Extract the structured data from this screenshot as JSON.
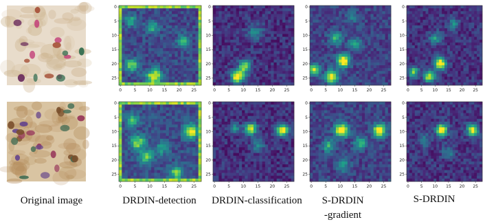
{
  "captions": {
    "original": "Original image",
    "detection": "DRDIN-detection",
    "classification": "DRDIN-classification",
    "sgradient_line1": "S-DRDIN",
    "sgradient_line2": "-gradient",
    "sdrdin": "S-DRDIN"
  },
  "heatmap_axes": {
    "y_ticks": [
      "0",
      "5",
      "10",
      "15",
      "20",
      "25"
    ],
    "x_ticks": [
      "0",
      "5",
      "10",
      "15",
      "20",
      "25"
    ],
    "grid_size": 28
  },
  "colors": {
    "colormap": "viridis",
    "background": "#ffffff"
  },
  "rows": [
    {
      "row": 1,
      "panels": [
        {
          "name": "original",
          "type": "photo",
          "palette": [
            "#e8dccb",
            "#cdb48f",
            "#a9573f",
            "#c23e78",
            "#6b2c5c",
            "#2f6b4e"
          ]
        },
        {
          "name": "detection",
          "type": "heatmap",
          "base": 0.22,
          "border": true,
          "hotspots": [
            [
              24.5,
              11.5,
              1.8,
              0.8
            ],
            [
              20.5,
              4,
              1.6,
              0.55
            ],
            [
              12,
              21.5,
              1.4,
              0.5
            ],
            [
              7,
              11,
              1.5,
              0.45
            ],
            [
              5,
              3.5,
              1.3,
              0.45
            ]
          ]
        },
        {
          "name": "classification",
          "type": "heatmap",
          "base": 0.14,
          "border": false,
          "hotspots": [
            [
              24.5,
              8,
              1.5,
              1.0
            ],
            [
              21,
              10.5,
              1.5,
              0.7
            ],
            [
              9,
              14,
              2.0,
              0.3
            ]
          ]
        },
        {
          "name": "s-drdin-gradient",
          "type": "heatmap",
          "base": 0.2,
          "border": false,
          "hotspots": [
            [
              19,
              11,
              1.5,
              1.0
            ],
            [
              24.5,
              7,
              1.5,
              0.85
            ],
            [
              22,
              1,
              1.3,
              0.7
            ],
            [
              11,
              8.5,
              1.5,
              0.45
            ],
            [
              13,
              15,
              1.5,
              0.4
            ],
            [
              3.5,
              14,
              1.2,
              0.35
            ]
          ]
        },
        {
          "name": "s-drdin",
          "type": "heatmap",
          "base": 0.15,
          "border": false,
          "hotspots": [
            [
              20,
              12,
              1.4,
              1.0
            ],
            [
              24.5,
              8,
              1.4,
              0.8
            ],
            [
              23,
              2,
              1.3,
              0.65
            ],
            [
              11,
              10,
              1.5,
              0.4
            ],
            [
              6,
              17,
              1.3,
              0.35
            ]
          ]
        }
      ]
    },
    {
      "row": 2,
      "panels": [
        {
          "name": "original",
          "type": "photo",
          "palette": [
            "#d9c4a2",
            "#b38b5a",
            "#7a4f2c",
            "#6a4a8c",
            "#9a3e5e",
            "#3d6a52"
          ]
        },
        {
          "name": "detection",
          "type": "heatmap",
          "base": 0.24,
          "border": true,
          "hotspots": [
            [
              10,
              24,
              1.6,
              0.85
            ],
            [
              14,
              6,
              1.8,
              0.6
            ],
            [
              19,
              9,
              1.6,
              0.5
            ],
            [
              24.5,
              19,
              1.6,
              0.55
            ],
            [
              6,
              4,
              1.5,
              0.45
            ],
            [
              16,
              14,
              1.5,
              0.35
            ]
          ]
        },
        {
          "name": "classification",
          "type": "heatmap",
          "base": 0.14,
          "border": false,
          "hotspots": [
            [
              9.5,
              23.5,
              1.4,
              1.0
            ],
            [
              9,
              12.5,
              1.4,
              0.8
            ],
            [
              9,
              7,
              1.3,
              0.4
            ],
            [
              15,
              15,
              1.6,
              0.3
            ]
          ]
        },
        {
          "name": "s-drdin-gradient",
          "type": "heatmap",
          "base": 0.2,
          "border": false,
          "hotspots": [
            [
              9.5,
              10.5,
              1.6,
              1.0
            ],
            [
              9.5,
              23.5,
              1.5,
              0.95
            ],
            [
              15,
              6,
              1.5,
              0.45
            ],
            [
              14,
              17,
              1.5,
              0.45
            ],
            [
              22,
              11,
              1.5,
              0.35
            ]
          ]
        },
        {
          "name": "s-drdin",
          "type": "heatmap",
          "base": 0.15,
          "border": false,
          "hotspots": [
            [
              9.5,
              12.5,
              1.4,
              1.0
            ],
            [
              9.5,
              24,
              1.4,
              0.9
            ],
            [
              17,
              15,
              1.5,
              0.3
            ],
            [
              13,
              6,
              1.4,
              0.3
            ]
          ]
        }
      ]
    }
  ]
}
